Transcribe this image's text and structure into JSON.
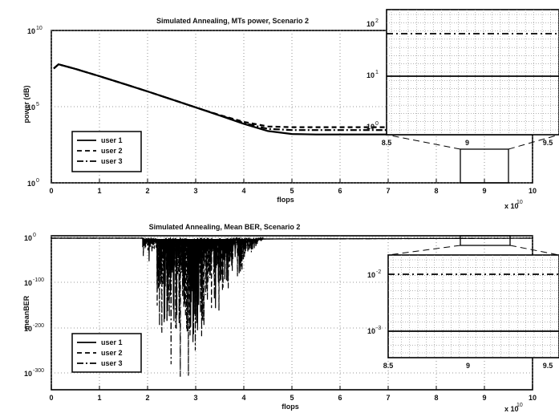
{
  "colors": {
    "line": "#000000",
    "grid": "#777777",
    "background": "#ffffff"
  },
  "chart_data": [
    {
      "type": "line",
      "title": "Simulated Annealing, MTs power, Scenario 2",
      "xlabel": "flops",
      "ylabel": "power (dB)",
      "x_exponent_label": "x 10",
      "x_exponent": "10",
      "xlim": [
        0,
        10
      ],
      "y_scale": "log",
      "ylim": [
        1,
        10000000000.0
      ],
      "x_ticks": [
        "0",
        "1",
        "2",
        "3",
        "4",
        "5",
        "6",
        "7",
        "8",
        "9",
        "10"
      ],
      "y_tick_mantissa": "10",
      "y_tick_exponents": [
        "0",
        "5",
        "10"
      ],
      "grid": true,
      "legend": {
        "location": "bottom-left",
        "entries": [
          "user 1",
          "user 2",
          "user 3"
        ]
      },
      "series": [
        {
          "name": "user 1",
          "x": [
            0.05,
            0.15,
            0.5,
            1,
            1.5,
            2,
            2.5,
            3,
            3.5,
            4,
            4.5,
            5,
            5.5,
            6,
            7,
            8,
            9,
            10
          ],
          "y": [
            32000000.0,
            60000000.0,
            30000000.0,
            10000000.0,
            3200000.0,
            1000000.0,
            300000.0,
            90000.0,
            26000.0,
            7500.0,
            2500.0,
            1600.0,
            1500.0,
            1500.0,
            1500.0,
            1500.0,
            1500.0,
            1500.0
          ]
        },
        {
          "name": "user 2",
          "x": [
            0.05,
            0.15,
            0.5,
            1,
            1.5,
            2,
            2.5,
            3,
            3.5,
            4,
            4.5,
            5,
            5.5,
            6,
            7,
            8,
            9,
            10
          ],
          "y": [
            32000000.0,
            60000000.0,
            30000000.0,
            10000000.0,
            3200000.0,
            1000000.0,
            300000.0,
            90000.0,
            28000.0,
            10000.0,
            5000.0,
            4500.0,
            4500.0,
            4500.0,
            4500.0,
            4500.0,
            4500.0,
            4500.0
          ]
        },
        {
          "name": "user 3",
          "x": [
            0.05,
            0.15,
            0.5,
            1,
            1.5,
            2,
            2.5,
            3,
            3.5,
            4,
            4.5,
            5,
            5.5,
            6,
            7,
            8,
            9,
            10
          ],
          "y": [
            32000000.0,
            60000000.0,
            30000000.0,
            10000000.0,
            3200000.0,
            1000000.0,
            300000.0,
            90000.0,
            27000.0,
            8500.0,
            3500.0,
            2900.0,
            2900.0,
            2900.0,
            2900.0,
            2900.0,
            2900.0,
            2900.0
          ]
        }
      ],
      "inset": {
        "xlim": [
          8.5,
          9.5
        ],
        "x_ticks": [
          "8.5",
          "9",
          "9.5"
        ],
        "y_tick_mantissa": "10",
        "y_tick_exponents": [
          "0",
          "1",
          "2"
        ],
        "series_levels": {
          "user 1": 10,
          "user 2": 40
        }
      }
    },
    {
      "type": "line",
      "title": "Simulated Annealing, Mean BER, Scenario 2",
      "xlabel": "flops",
      "ylabel": "meanBER",
      "x_exponent_label": "x 10",
      "x_exponent": "10",
      "xlim": [
        0,
        10
      ],
      "y_scale": "log",
      "ylim": [
        1e-300,
        1
      ],
      "x_ticks": [
        "0",
        "1",
        "2",
        "3",
        "4",
        "5",
        "6",
        "7",
        "8",
        "9",
        "10"
      ],
      "y_tick_mantissa": "10",
      "y_tick_exponents": [
        "0",
        "-100",
        "-200",
        "-300"
      ],
      "grid": true,
      "legend": {
        "location": "bottom-left",
        "entries": [
          "user 1",
          "user 2",
          "user 3"
        ]
      },
      "series": [
        {
          "name": "user 1",
          "x": [
            0,
            2,
            2.5,
            3,
            3.5,
            4,
            4.5,
            5,
            10
          ],
          "y": [
            1,
            0.1,
            0.1,
            0.1,
            0.1,
            0.1,
            0.1,
            0.1,
            0.1
          ]
        },
        {
          "name": "user 2",
          "x": [
            0,
            2,
            2.5,
            3,
            3.5,
            4,
            4.5,
            5,
            10
          ],
          "y": [
            1,
            0.1,
            0.1,
            0.1,
            0.1,
            0.1,
            0.1,
            0.1,
            0.1
          ]
        },
        {
          "name": "user 3",
          "x": [
            0,
            2,
            2.5,
            3,
            3.5,
            4,
            4.5,
            5,
            10
          ],
          "y": [
            1,
            0.1,
            0.1,
            0.1,
            0.1,
            0.1,
            0.1,
            0.1,
            0.1
          ]
        }
      ],
      "inset": {
        "xlim": [
          8.5,
          9.5
        ],
        "x_ticks": [
          "8.5",
          "9",
          "9.5"
        ],
        "y_tick_mantissa": "10",
        "y_tick_exponents": [
          "-2",
          "-3"
        ]
      }
    }
  ]
}
